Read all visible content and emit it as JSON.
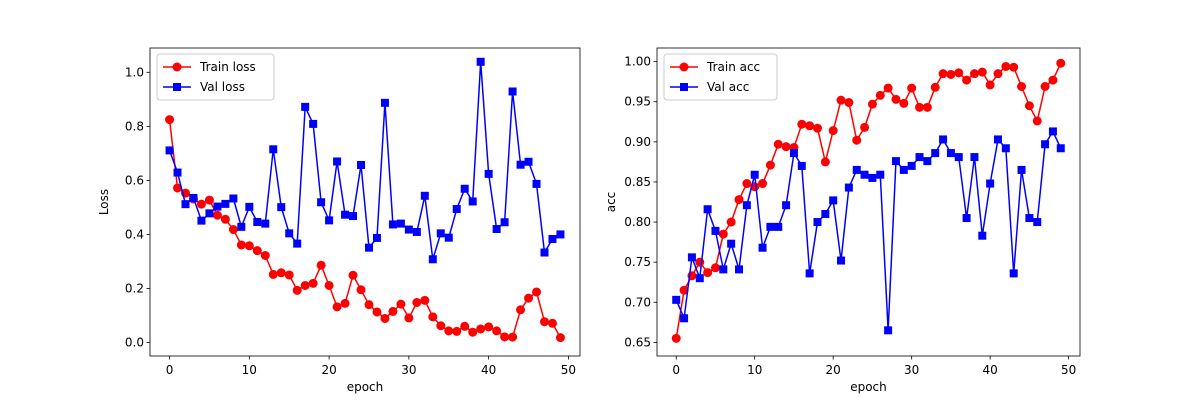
{
  "chart_data": [
    {
      "type": "line",
      "xlabel": "epoch",
      "ylabel": "Loss",
      "xlim": [
        -2.45,
        51.45
      ],
      "ylim": [
        -0.05,
        1.09
      ],
      "xticks": [
        0,
        10,
        20,
        30,
        40,
        50
      ],
      "xtick_labels": [
        "0",
        "10",
        "20",
        "30",
        "40",
        "50"
      ],
      "yticks": [
        0.0,
        0.2,
        0.4,
        0.6,
        0.8,
        1.0
      ],
      "ytick_labels": [
        "0.0",
        "0.2",
        "0.4",
        "0.6",
        "0.8",
        "1.0"
      ],
      "grid": false,
      "legend_position": "upper left",
      "x": [
        0,
        1,
        2,
        3,
        4,
        5,
        6,
        7,
        8,
        9,
        10,
        11,
        12,
        13,
        14,
        15,
        16,
        17,
        18,
        19,
        20,
        21,
        22,
        23,
        24,
        25,
        26,
        27,
        28,
        29,
        30,
        31,
        32,
        33,
        34,
        35,
        36,
        37,
        38,
        39,
        40,
        41,
        42,
        43,
        44,
        45,
        46,
        47,
        48,
        49
      ],
      "series": [
        {
          "name": "Train loss",
          "color": "#ff0000",
          "marker": "circle",
          "values": [
            0.825,
            0.572,
            0.553,
            0.531,
            0.512,
            0.527,
            0.471,
            0.456,
            0.418,
            0.361,
            0.358,
            0.34,
            0.322,
            0.252,
            0.258,
            0.25,
            0.193,
            0.211,
            0.219,
            0.286,
            0.211,
            0.132,
            0.145,
            0.249,
            0.195,
            0.14,
            0.113,
            0.089,
            0.115,
            0.142,
            0.091,
            0.148,
            0.156,
            0.095,
            0.062,
            0.043,
            0.041,
            0.06,
            0.038,
            0.05,
            0.058,
            0.043,
            0.021,
            0.02,
            0.121,
            0.164,
            0.187,
            0.077,
            0.071,
            0.018
          ]
        },
        {
          "name": "Val loss",
          "color": "#0000ff",
          "marker": "square",
          "values": [
            0.711,
            0.629,
            0.512,
            0.535,
            0.451,
            0.478,
            0.503,
            0.513,
            0.533,
            0.428,
            0.502,
            0.446,
            0.44,
            0.715,
            0.501,
            0.404,
            0.366,
            0.872,
            0.809,
            0.519,
            0.452,
            0.67,
            0.473,
            0.468,
            0.657,
            0.351,
            0.387,
            0.887,
            0.437,
            0.44,
            0.418,
            0.409,
            0.543,
            0.308,
            0.404,
            0.388,
            0.494,
            0.569,
            0.522,
            1.039,
            0.624,
            0.42,
            0.445,
            0.929,
            0.658,
            0.669,
            0.587,
            0.333,
            0.383,
            0.4
          ]
        }
      ]
    },
    {
      "type": "line",
      "xlabel": "epoch",
      "ylabel": "acc",
      "xlim": [
        -2.45,
        51.45
      ],
      "ylim": [
        0.633,
        1.017
      ],
      "xticks": [
        0,
        10,
        20,
        30,
        40,
        50
      ],
      "xtick_labels": [
        "0",
        "10",
        "20",
        "30",
        "40",
        "50"
      ],
      "yticks": [
        0.65,
        0.7,
        0.75,
        0.8,
        0.85,
        0.9,
        0.95,
        1.0
      ],
      "ytick_labels": [
        "0.65",
        "0.70",
        "0.75",
        "0.80",
        "0.85",
        "0.90",
        "0.95",
        "1.00"
      ],
      "grid": false,
      "legend_position": "upper left",
      "x": [
        0,
        1,
        2,
        3,
        4,
        5,
        6,
        7,
        8,
        9,
        10,
        11,
        12,
        13,
        14,
        15,
        16,
        17,
        18,
        19,
        20,
        21,
        22,
        23,
        24,
        25,
        26,
        27,
        28,
        29,
        30,
        31,
        32,
        33,
        34,
        35,
        36,
        37,
        38,
        39,
        40,
        41,
        42,
        43,
        44,
        45,
        46,
        47,
        48,
        49
      ],
      "series": [
        {
          "name": "Train acc",
          "color": "#ff0000",
          "marker": "circle",
          "values": [
            0.655,
            0.715,
            0.733,
            0.75,
            0.737,
            0.743,
            0.785,
            0.8,
            0.828,
            0.848,
            0.844,
            0.848,
            0.871,
            0.897,
            0.894,
            0.893,
            0.922,
            0.92,
            0.917,
            0.875,
            0.914,
            0.952,
            0.949,
            0.902,
            0.918,
            0.947,
            0.958,
            0.967,
            0.953,
            0.948,
            0.967,
            0.943,
            0.943,
            0.968,
            0.985,
            0.984,
            0.986,
            0.977,
            0.985,
            0.987,
            0.971,
            0.985,
            0.994,
            0.993,
            0.969,
            0.945,
            0.926,
            0.969,
            0.977,
            0.998
          ]
        },
        {
          "name": "Val acc",
          "color": "#0000ff",
          "marker": "square",
          "values": [
            0.703,
            0.68,
            0.756,
            0.73,
            0.816,
            0.789,
            0.741,
            0.773,
            0.741,
            0.821,
            0.859,
            0.768,
            0.794,
            0.794,
            0.821,
            0.886,
            0.87,
            0.736,
            0.8,
            0.81,
            0.827,
            0.752,
            0.843,
            0.865,
            0.859,
            0.855,
            0.859,
            0.665,
            0.876,
            0.865,
            0.87,
            0.881,
            0.876,
            0.886,
            0.903,
            0.886,
            0.881,
            0.805,
            0.881,
            0.783,
            0.848,
            0.903,
            0.892,
            0.736,
            0.865,
            0.805,
            0.8,
            0.897,
            0.913,
            0.892
          ]
        }
      ]
    }
  ]
}
